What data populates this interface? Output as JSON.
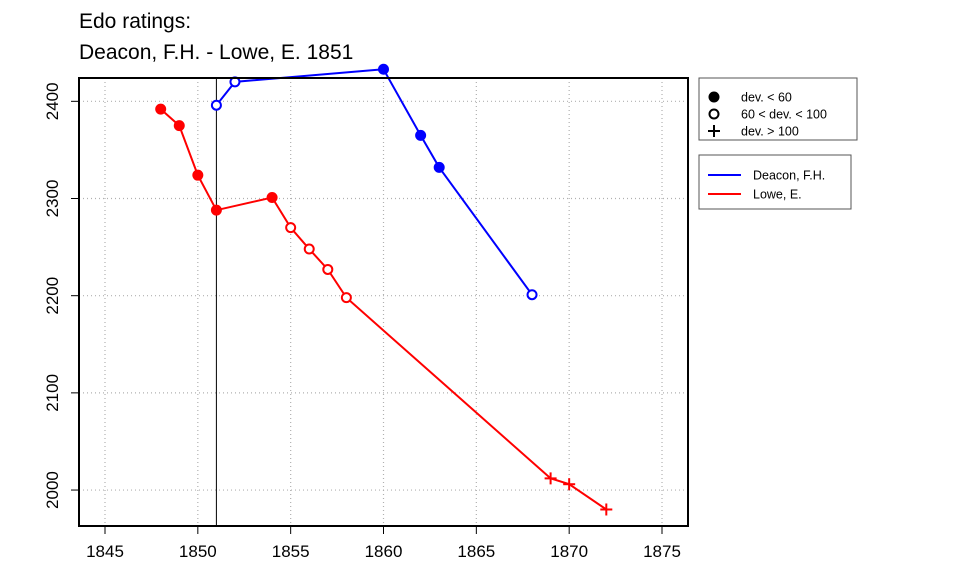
{
  "chart_data": {
    "type": "line",
    "title": [
      "Edo ratings:",
      "Deacon, F.H. - Lowe, E. 1851"
    ],
    "xlim": [
      1843.6,
      1876.4
    ],
    "ylim": [
      1963,
      2424
    ],
    "x_ticks": [
      1845,
      1850,
      1855,
      1860,
      1865,
      1870,
      1875
    ],
    "y_ticks": [
      2000,
      2100,
      2200,
      2300,
      2400
    ],
    "grid": true,
    "reference_line_x": 1851,
    "series": [
      {
        "name": "Deacon, F.H.",
        "color": "#0000ff",
        "points": [
          {
            "x": 1851,
            "y": 2396,
            "marker": "open"
          },
          {
            "x": 1852,
            "y": 2420,
            "marker": "open"
          },
          {
            "x": 1860,
            "y": 2433,
            "marker": "filled"
          },
          {
            "x": 1862,
            "y": 2365,
            "marker": "filled"
          },
          {
            "x": 1863,
            "y": 2332,
            "marker": "filled"
          },
          {
            "x": 1868,
            "y": 2201,
            "marker": "open"
          }
        ]
      },
      {
        "name": "Lowe, E.",
        "color": "#ff0000",
        "points": [
          {
            "x": 1848,
            "y": 2392,
            "marker": "filled"
          },
          {
            "x": 1849,
            "y": 2375,
            "marker": "filled"
          },
          {
            "x": 1850,
            "y": 2324,
            "marker": "filled"
          },
          {
            "x": 1851,
            "y": 2288,
            "marker": "filled"
          },
          {
            "x": 1854,
            "y": 2301,
            "marker": "filled"
          },
          {
            "x": 1855,
            "y": 2270,
            "marker": "open"
          },
          {
            "x": 1856,
            "y": 2248,
            "marker": "open"
          },
          {
            "x": 1857,
            "y": 2227,
            "marker": "open"
          },
          {
            "x": 1858,
            "y": 2198,
            "marker": "open"
          },
          {
            "x": 1869,
            "y": 2012,
            "marker": "plus"
          },
          {
            "x": 1870,
            "y": 2006,
            "marker": "plus"
          },
          {
            "x": 1872,
            "y": 1980,
            "marker": "plus"
          }
        ]
      }
    ],
    "marker_legend": [
      {
        "marker": "filled",
        "label": "dev. < 60"
      },
      {
        "marker": "open",
        "label": "60 < dev. < 100"
      },
      {
        "marker": "plus",
        "label": "dev. > 100"
      }
    ]
  }
}
